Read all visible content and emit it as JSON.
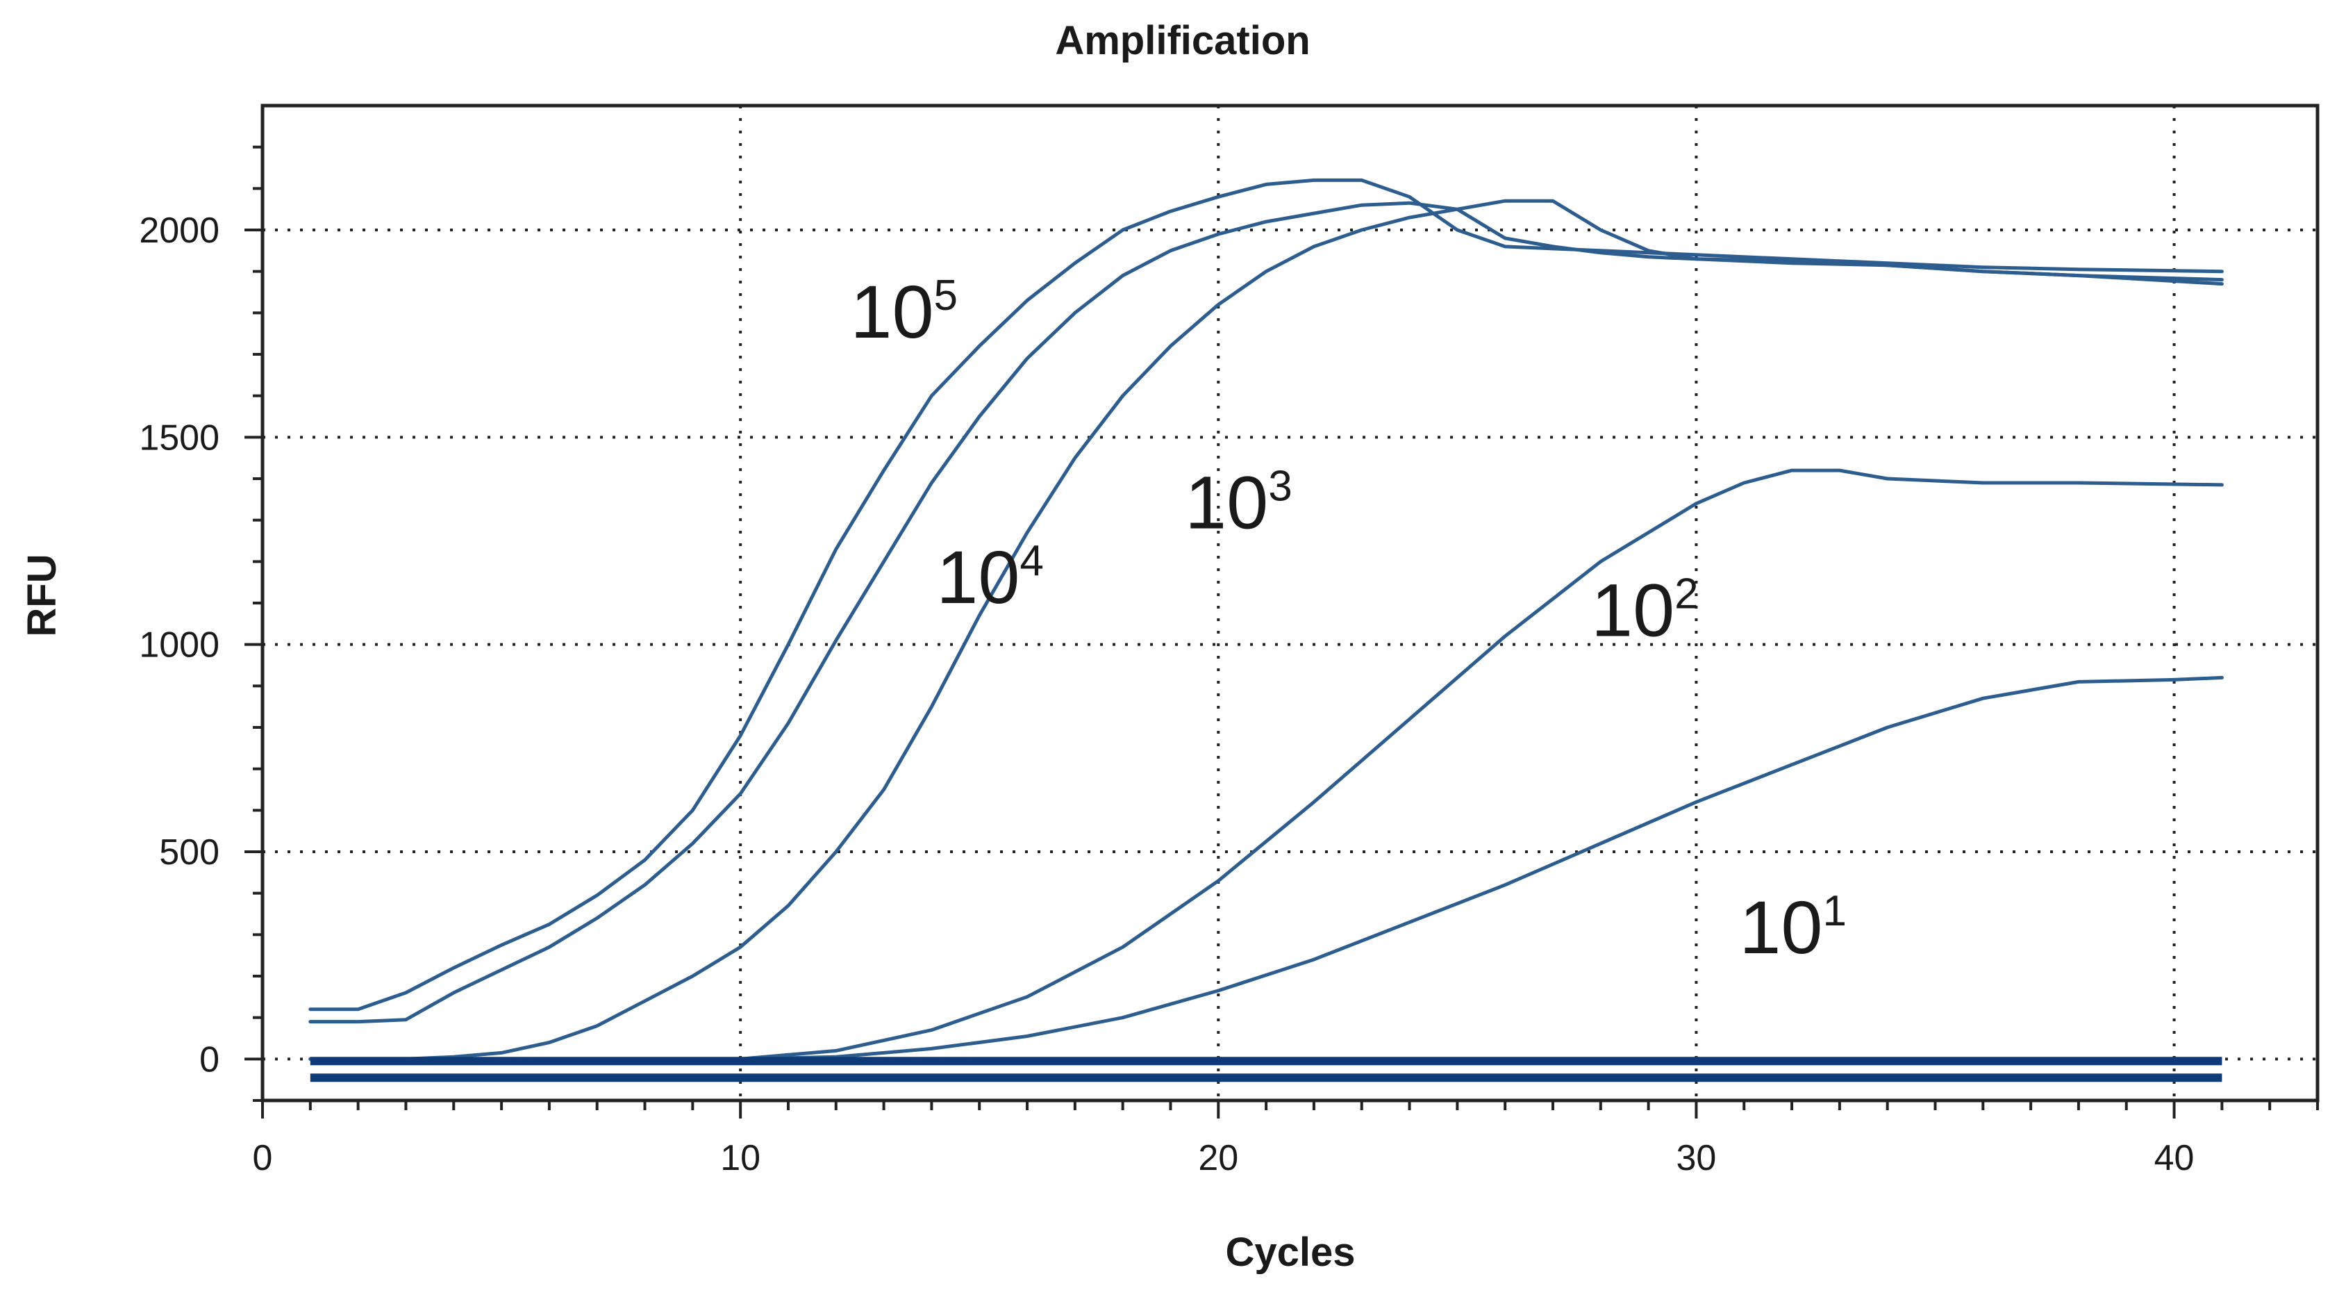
{
  "chart_data": {
    "type": "line",
    "title": "Amplification",
    "xlabel": "Cycles",
    "ylabel": "RFU",
    "xlim": [
      0,
      43
    ],
    "ylim": [
      -100,
      2300
    ],
    "xticks": [
      0,
      10,
      20,
      30,
      40
    ],
    "yticks": [
      0,
      500,
      1000,
      1500,
      2000
    ],
    "xtick_labels": [
      "0",
      "10",
      "20",
      "30",
      "40"
    ],
    "ytick_labels": [
      "0",
      "500",
      "1000",
      "1500",
      "2000"
    ],
    "grid": true,
    "colors": {
      "series": "#2d5d8f",
      "baseline": "#0f3a78"
    },
    "series": [
      {
        "name": "10^5",
        "label_base": "10",
        "label_exp": "5",
        "label_pos": [
          12.3,
          1740
        ],
        "x": [
          1,
          2,
          3,
          4,
          5,
          6,
          7,
          8,
          9,
          10,
          11,
          12,
          13,
          14,
          15,
          16,
          17,
          18,
          19,
          20,
          21,
          22,
          23,
          24,
          25,
          26,
          27,
          28,
          29,
          30,
          32,
          34,
          36,
          38,
          41
        ],
        "y": [
          120,
          120,
          160,
          220,
          275,
          325,
          395,
          480,
          600,
          780,
          1000,
          1230,
          1420,
          1600,
          1720,
          1830,
          1920,
          2000,
          2045,
          2080,
          2110,
          2120,
          2120,
          2080,
          2000,
          1960,
          1955,
          1950,
          1945,
          1940,
          1930,
          1920,
          1910,
          1905,
          1900
        ]
      },
      {
        "name": "10^4",
        "label_base": "10",
        "label_exp": "4",
        "label_pos": [
          14.1,
          1100
        ],
        "x": [
          1,
          2,
          3,
          4,
          5,
          6,
          7,
          8,
          9,
          10,
          11,
          12,
          13,
          14,
          15,
          16,
          17,
          18,
          19,
          20,
          21,
          22,
          23,
          24,
          25,
          26,
          27,
          28,
          29,
          30,
          32,
          34,
          36,
          38,
          41
        ],
        "y": [
          90,
          90,
          95,
          160,
          215,
          270,
          340,
          420,
          520,
          640,
          810,
          1010,
          1200,
          1390,
          1550,
          1690,
          1800,
          1890,
          1950,
          1990,
          2020,
          2040,
          2060,
          2065,
          2050,
          1980,
          1960,
          1945,
          1935,
          1930,
          1925,
          1915,
          1900,
          1890,
          1870
        ]
      },
      {
        "name": "10^3",
        "label_base": "10",
        "label_exp": "3",
        "label_pos": [
          19.3,
          1280
        ],
        "x": [
          1,
          2,
          3,
          4,
          5,
          6,
          7,
          8,
          9,
          10,
          11,
          12,
          13,
          14,
          15,
          16,
          17,
          18,
          19,
          20,
          21,
          22,
          23,
          24,
          25,
          26,
          27,
          28,
          29,
          30,
          32,
          34,
          36,
          38,
          41
        ],
        "y": [
          0,
          0,
          0,
          5,
          15,
          40,
          80,
          140,
          200,
          270,
          370,
          500,
          650,
          850,
          1070,
          1270,
          1450,
          1600,
          1720,
          1820,
          1900,
          1960,
          2000,
          2030,
          2050,
          2070,
          2070,
          2000,
          1950,
          1930,
          1920,
          1915,
          1900,
          1890,
          1880
        ]
      },
      {
        "name": "10^2",
        "label_base": "10",
        "label_exp": "2",
        "label_pos": [
          27.8,
          1020
        ],
        "x": [
          1,
          4,
          8,
          10,
          12,
          14,
          16,
          18,
          20,
          22,
          24,
          26,
          28,
          30,
          31,
          32,
          33,
          34,
          36,
          38,
          41
        ],
        "y": [
          0,
          0,
          0,
          0,
          20,
          70,
          150,
          270,
          430,
          620,
          820,
          1020,
          1200,
          1340,
          1390,
          1420,
          1420,
          1400,
          1390,
          1390,
          1385
        ]
      },
      {
        "name": "10^1",
        "label_base": "10",
        "label_exp": "1",
        "label_pos": [
          30.9,
          255
        ],
        "x": [
          1,
          4,
          8,
          10,
          12,
          14,
          16,
          18,
          20,
          22,
          24,
          26,
          28,
          30,
          32,
          34,
          36,
          38,
          40,
          41
        ],
        "y": [
          0,
          0,
          0,
          0,
          5,
          25,
          55,
          100,
          165,
          240,
          330,
          420,
          520,
          620,
          710,
          800,
          870,
          910,
          915,
          920
        ]
      },
      {
        "name": "baseline-1",
        "x": [
          1,
          41
        ],
        "y": [
          -5,
          -5
        ],
        "baseline": true
      },
      {
        "name": "baseline-2",
        "x": [
          1,
          41
        ],
        "y": [
          -45,
          -45
        ],
        "baseline": true
      }
    ]
  }
}
